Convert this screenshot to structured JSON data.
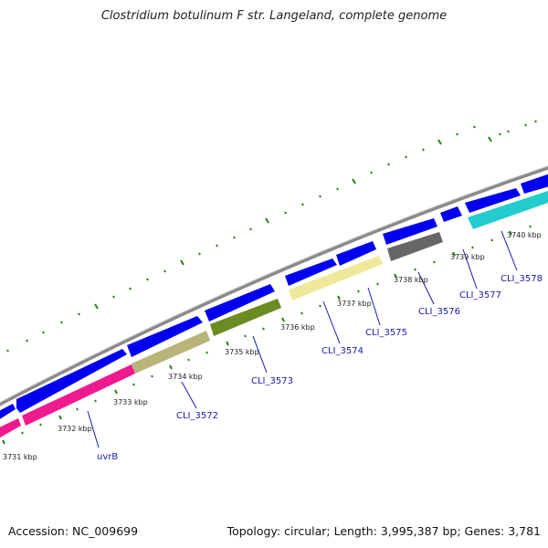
{
  "title": "Clostridium botulinum F str. Langeland, complete genome",
  "footer": {
    "accession": "Accession: NC_009699",
    "topology": "Topology: circular; Length: 3,995,387 bp; Genes: 3,781"
  },
  "scale_labels": [
    "3731 kbp",
    "3732 kbp",
    "3733 kbp",
    "3734 kbp",
    "3735 kbp",
    "3736 kbp",
    "3737 kbp",
    "3738 kbp",
    "3739 kbp",
    "3740 kbp"
  ],
  "gene_labels": [
    "uvrB",
    "CLI_3572",
    "CLI_3573",
    "CLI_3574",
    "CLI_3575",
    "CLI_3576",
    "CLI_3577",
    "CLI_3578"
  ],
  "colors": {
    "backbone": "#8a8a8a",
    "cds": "#0000ee",
    "magenta": "#ee1a8e",
    "khaki": "#b8b47a",
    "olive": "#6b8c22",
    "pale_yellow": "#f0e89a",
    "grey": "#666666",
    "cyan": "#22cccc",
    "ticks": "#2e7d1e",
    "label": "#1a1aa8"
  }
}
